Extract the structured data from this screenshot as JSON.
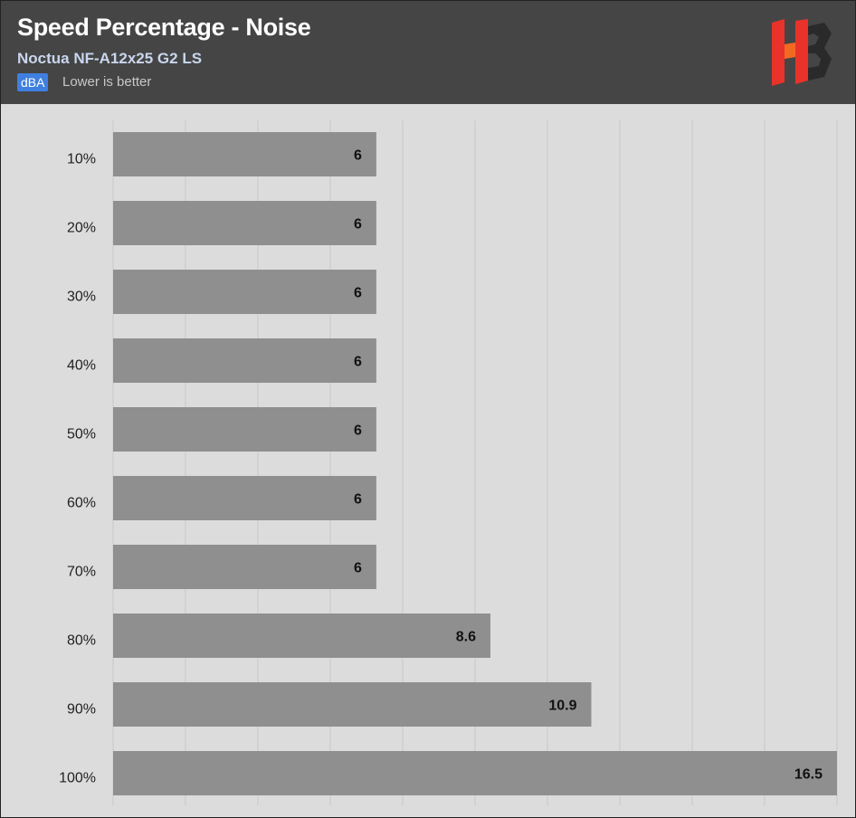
{
  "header": {
    "title": "Speed Percentage - Noise",
    "subtitle": "Noctua NF-A12x25 G2 LS",
    "unit_badge": "dBA",
    "note": "Lower is better",
    "logo": "HB",
    "logo_colors": [
      "#e8322a",
      "#f26a21",
      "#2a2a2a"
    ]
  },
  "colors": {
    "header_bg": "#454545",
    "plot_bg": "#dcdcdc",
    "bar": "#8f8f8f",
    "grid": "#c8c8c8",
    "badge": "#3f7fe0"
  },
  "chart_data": {
    "type": "bar",
    "orientation": "horizontal",
    "title": "Speed Percentage - Noise",
    "subtitle": "Noctua NF-A12x25 G2 LS",
    "unit": "dBA",
    "categories": [
      "10%",
      "20%",
      "30%",
      "40%",
      "50%",
      "60%",
      "70%",
      "80%",
      "90%",
      "100%"
    ],
    "values": [
      6,
      6,
      6,
      6,
      6,
      6,
      6,
      8.6,
      10.9,
      16.5
    ],
    "value_labels": [
      "6",
      "6",
      "6",
      "6",
      "6",
      "6",
      "6",
      "8.6",
      "10.9",
      "16.5"
    ],
    "xlim": [
      0,
      16.5
    ],
    "grid": true,
    "legend": "none"
  }
}
